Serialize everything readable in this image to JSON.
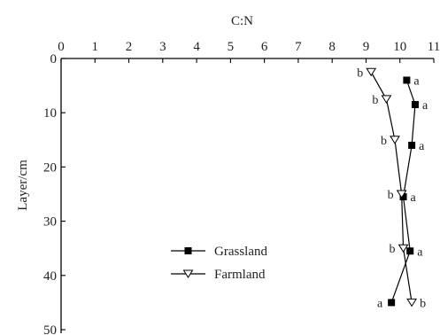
{
  "chart_data": {
    "type": "line",
    "orientation": "depth-profile",
    "xlabel": "C:N",
    "ylabel": "Layer/cm",
    "xlim": [
      0,
      11
    ],
    "ylim": [
      0,
      50
    ],
    "x_ticks": [
      0,
      1,
      2,
      3,
      4,
      5,
      6,
      7,
      8,
      9,
      10,
      11
    ],
    "y_ticks": [
      0,
      10,
      20,
      30,
      40,
      50
    ],
    "x_axis_position": "top",
    "y_axis_inverted": true,
    "grid": false,
    "legend_position": "lower-left-center",
    "series": [
      {
        "name": "Grassland",
        "marker": "filled-square",
        "color": "#000000",
        "points": [
          {
            "x": 10.2,
            "y": 4,
            "label": "a"
          },
          {
            "x": 10.45,
            "y": 8.5,
            "label": "a"
          },
          {
            "x": 10.35,
            "y": 16,
            "label": "a"
          },
          {
            "x": 10.1,
            "y": 25.5,
            "label": "a"
          },
          {
            "x": 10.3,
            "y": 35.5,
            "label": "a"
          },
          {
            "x": 9.75,
            "y": 45,
            "label": "a"
          }
        ]
      },
      {
        "name": "Farmland",
        "marker": "open-triangle-down",
        "color": "#000000",
        "points": [
          {
            "x": 9.15,
            "y": 2.5,
            "label": "b"
          },
          {
            "x": 9.6,
            "y": 7.5,
            "label": "b"
          },
          {
            "x": 9.85,
            "y": 15,
            "label": "b"
          },
          {
            "x": 10.05,
            "y": 25,
            "label": "b"
          },
          {
            "x": 10.1,
            "y": 35,
            "label": "b"
          },
          {
            "x": 10.35,
            "y": 45,
            "label": "b"
          }
        ]
      }
    ]
  }
}
